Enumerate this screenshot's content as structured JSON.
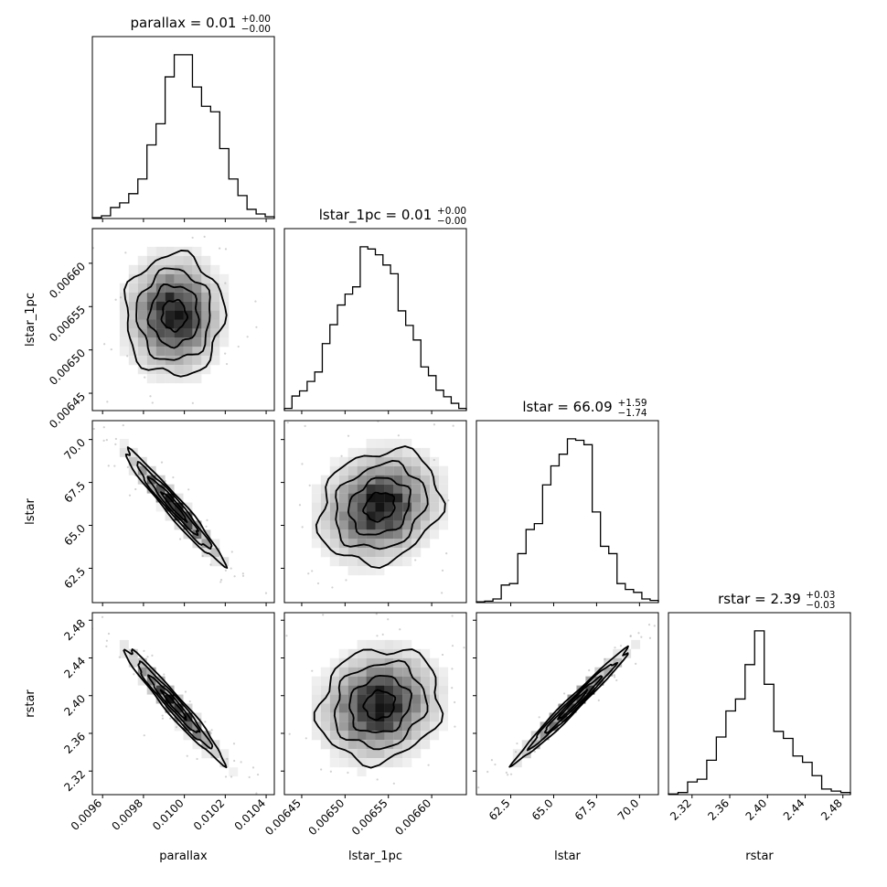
{
  "chart_data": {
    "type": "scatter",
    "subtype": "corner-plot",
    "parameters": [
      "parallax",
      "lstar_1pc",
      "lstar",
      "rstar"
    ],
    "titles": [
      {
        "param": "parallax",
        "text": "parallax = 0.01",
        "plus": "+0.00",
        "minus": "−0.00"
      },
      {
        "param": "lstar_1pc",
        "text": "lstar_1pc = 0.01",
        "plus": "+0.00",
        "minus": "−0.00"
      },
      {
        "param": "lstar",
        "text": "lstar = 66.09",
        "plus": "+1.59",
        "minus": "−1.74"
      },
      {
        "param": "rstar",
        "text": "rstar = 2.39",
        "plus": "+0.03",
        "minus": "−0.03"
      }
    ],
    "axes": [
      {
        "param": "parallax",
        "label": "parallax",
        "range": [
          0.00955,
          0.01044
        ],
        "ticks": [
          0.0096,
          0.0098,
          0.01,
          0.0102,
          0.0104
        ],
        "tick_labels": [
          "0.0096",
          "0.0098",
          "0.0100",
          "0.0102",
          "0.0104"
        ],
        "center": 0.00995,
        "sigma": 0.00012
      },
      {
        "param": "lstar_1pc",
        "label": "lstar_1pc",
        "range": [
          0.00643,
          0.00664
        ],
        "ticks": [
          0.00645,
          0.0065,
          0.00655,
          0.0066
        ],
        "tick_labels": [
          "0.00645",
          "0.00650",
          "0.00655",
          "0.00660"
        ],
        "center": 0.00654,
        "sigma": 3.5e-05
      },
      {
        "param": "lstar",
        "label": "lstar",
        "range": [
          60.5,
          71.1
        ],
        "ticks": [
          62.5,
          65.0,
          67.5,
          70.0
        ],
        "tick_labels": [
          "62.5",
          "65.0",
          "67.5",
          "70.0"
        ],
        "center": 66.09,
        "sigma": 1.65
      },
      {
        "param": "rstar",
        "label": "rstar",
        "range": [
          2.295,
          2.488
        ],
        "ticks": [
          2.32,
          2.36,
          2.4,
          2.44,
          2.48
        ],
        "tick_labels": [
          "2.32",
          "2.36",
          "2.40",
          "2.44",
          "2.48"
        ],
        "center": 2.39,
        "sigma": 0.03
      }
    ],
    "histograms": [
      {
        "param": "parallax",
        "counts": [
          1,
          3,
          12,
          17,
          27,
          43,
          80,
          103,
          154,
          178,
          178,
          143,
          122,
          116,
          76,
          43,
          25,
          10,
          5,
          2
        ]
      },
      {
        "param": "lstar_1pc",
        "counts": [
          3,
          20,
          27,
          40,
          53,
          92,
          118,
          145,
          160,
          170,
          225,
          222,
          214,
          200,
          188,
          137,
          117,
          97,
          60,
          48,
          28,
          19,
          10,
          3
        ]
      },
      {
        "param": "lstar",
        "counts": [
          1,
          2,
          5,
          24,
          26,
          67,
          100,
          108,
          161,
          187,
          203,
          224,
          222,
          216,
          124,
          77,
          67,
          26,
          18,
          14,
          5,
          3
        ]
      },
      {
        "param": "rstar",
        "counts": [
          1,
          3,
          18,
          22,
          49,
          82,
          119,
          136,
          185,
          233,
          157,
          90,
          80,
          55,
          46,
          27,
          8,
          5,
          3
        ]
      }
    ],
    "correlations": [
      {
        "x": "parallax",
        "y": "lstar_1pc",
        "rho": 0.0
      },
      {
        "x": "parallax",
        "y": "lstar",
        "rho": -0.97
      },
      {
        "x": "parallax",
        "y": "rstar",
        "rho": -0.97
      },
      {
        "x": "lstar_1pc",
        "y": "lstar",
        "rho": 0.18
      },
      {
        "x": "lstar_1pc",
        "y": "rstar",
        "rho": 0.12
      },
      {
        "x": "lstar",
        "y": "rstar",
        "rho": 0.985
      }
    ],
    "colors": {
      "contour": "#000000",
      "scatter": "#9a9a9a",
      "density": "#000000"
    }
  }
}
